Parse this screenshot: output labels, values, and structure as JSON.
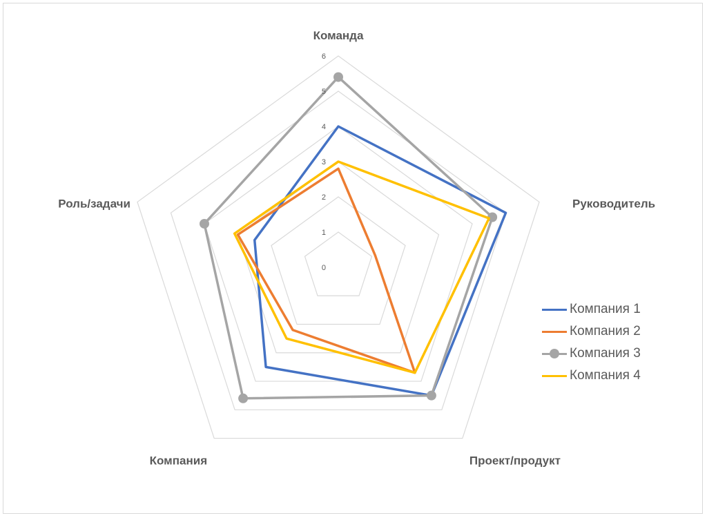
{
  "chart_data": {
    "type": "radar",
    "axes": [
      "Команда",
      "Руководитель",
      "Проект/продукт",
      "Компания",
      "Роль/задачи"
    ],
    "rlim": [
      0,
      6
    ],
    "ticks": [
      "0",
      "1",
      "2",
      "3",
      "4",
      "5",
      "6"
    ],
    "grid": true,
    "legend_position": "right",
    "series": [
      {
        "name": "Компания 1",
        "color": "#4472C4",
        "marker": false,
        "values": [
          4,
          5,
          4.5,
          3.5,
          2.5
        ]
      },
      {
        "name": "Компания 2",
        "color": "#ED7D31",
        "marker": false,
        "values": [
          2.8,
          1.1,
          3.7,
          2.2,
          3.0
        ]
      },
      {
        "name": "Компания 3",
        "color": "#A5A5A5",
        "marker": true,
        "values": [
          5.4,
          4.6,
          4.5,
          4.6,
          4.0
        ]
      },
      {
        "name": "Компания 4",
        "color": "#FFC000",
        "marker": false,
        "values": [
          3.0,
          4.5,
          3.7,
          2.5,
          3.1
        ]
      }
    ]
  }
}
